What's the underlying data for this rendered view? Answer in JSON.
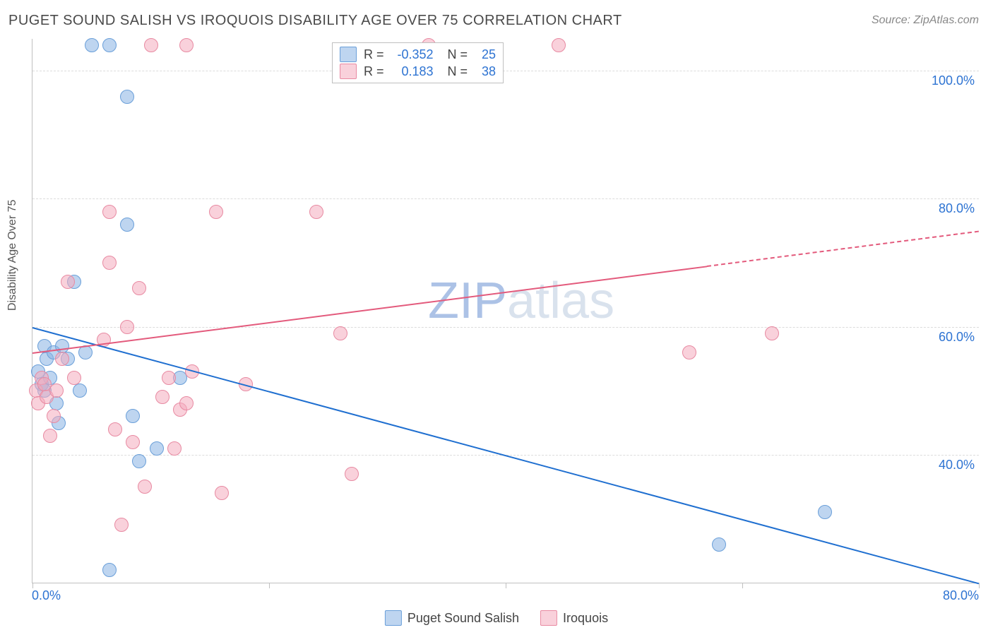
{
  "title": "PUGET SOUND SALISH VS IROQUOIS DISABILITY AGE OVER 75 CORRELATION CHART",
  "source": "Source: ZipAtlas.com",
  "ylabel": "Disability Age Over 75",
  "watermark": {
    "pre": "ZIP",
    "post": "atlas"
  },
  "chart": {
    "type": "scatter",
    "background": "#ffffff",
    "grid_color": "#dcdcdc",
    "axis_color": "#c0c0c0",
    "text_color": "#4a4a4a",
    "value_color": "#2d73d2",
    "xlim": [
      0,
      80
    ],
    "ylim": [
      20,
      105
    ],
    "xticks": [
      0,
      20,
      40,
      60,
      80
    ],
    "xtick_labels": [
      "0.0%",
      "",
      "",
      "",
      "80.0%"
    ],
    "yticks": [
      40,
      60,
      80,
      100
    ],
    "ytick_labels": [
      "40.0%",
      "60.0%",
      "80.0%",
      "100.0%"
    ],
    "marker_radius": 10,
    "marker_border_width": 1.5,
    "line_width": 2,
    "series": [
      {
        "name": "Puget Sound Salish",
        "fill": "rgba(137,178,228,0.55)",
        "stroke": "#6a9fd9",
        "line_color": "#1f6fd0",
        "r": -0.352,
        "n": 25,
        "regression": {
          "x1": 0,
          "y1": 60,
          "x2": 80,
          "y2": 20,
          "dashed_from_x": null
        },
        "points": [
          [
            0.5,
            53
          ],
          [
            0.8,
            51
          ],
          [
            1.0,
            57
          ],
          [
            1.2,
            55
          ],
          [
            1.5,
            52
          ],
          [
            1.8,
            56
          ],
          [
            1.0,
            50
          ],
          [
            2.0,
            48
          ],
          [
            2.2,
            45
          ],
          [
            2.5,
            57
          ],
          [
            3.0,
            55
          ],
          [
            3.5,
            67
          ],
          [
            4.0,
            50
          ],
          [
            4.5,
            56
          ],
          [
            5.0,
            104
          ],
          [
            6.5,
            104
          ],
          [
            8.0,
            96
          ],
          [
            8.0,
            76
          ],
          [
            8.5,
            46
          ],
          [
            9.0,
            39
          ],
          [
            10.5,
            41
          ],
          [
            6.5,
            22
          ],
          [
            12.5,
            52
          ],
          [
            58.0,
            26
          ],
          [
            67.0,
            31
          ]
        ]
      },
      {
        "name": "Iroquois",
        "fill": "rgba(244,171,190,0.55)",
        "stroke": "#e88aa2",
        "line_color": "#e35a7c",
        "r": 0.183,
        "n": 38,
        "regression": {
          "x1": 0,
          "y1": 56,
          "x2": 80,
          "y2": 75,
          "dashed_from_x": 57
        },
        "points": [
          [
            0.3,
            50
          ],
          [
            0.5,
            48
          ],
          [
            0.8,
            52
          ],
          [
            1.0,
            51
          ],
          [
            1.2,
            49
          ],
          [
            1.5,
            43
          ],
          [
            2.0,
            50
          ],
          [
            2.5,
            55
          ],
          [
            3.0,
            67
          ],
          [
            3.5,
            52
          ],
          [
            6.5,
            78
          ],
          [
            6.0,
            58
          ],
          [
            6.5,
            70
          ],
          [
            7.0,
            44
          ],
          [
            7.5,
            29
          ],
          [
            8.0,
            60
          ],
          [
            8.5,
            42
          ],
          [
            9.0,
            66
          ],
          [
            9.5,
            35
          ],
          [
            10.0,
            104
          ],
          [
            11.0,
            49
          ],
          [
            11.5,
            52
          ],
          [
            12.0,
            41
          ],
          [
            12.5,
            47
          ],
          [
            13.0,
            48
          ],
          [
            13.5,
            53
          ],
          [
            13.0,
            104
          ],
          [
            15.5,
            78
          ],
          [
            16.0,
            34
          ],
          [
            18.0,
            51
          ],
          [
            24.0,
            78
          ],
          [
            26.0,
            59
          ],
          [
            27.0,
            37
          ],
          [
            33.5,
            104
          ],
          [
            44.5,
            104
          ],
          [
            55.5,
            56
          ],
          [
            62.5,
            59
          ],
          [
            1.8,
            46
          ]
        ]
      }
    ]
  },
  "stats_box": {
    "rows": [
      {
        "series_idx": 0,
        "r_label": "R =",
        "n_label": "N ="
      },
      {
        "series_idx": 1,
        "r_label": "R =",
        "n_label": "N ="
      }
    ]
  }
}
